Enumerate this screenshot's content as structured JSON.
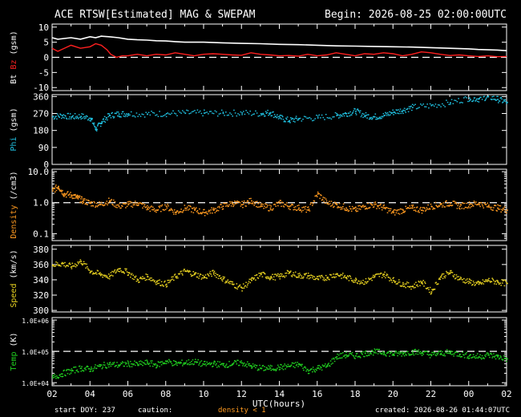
{
  "header": {
    "title": "ACE RTSW[Estimated] MAG & SWEPAM",
    "begin_label": "Begin: 2026-08-25 02:00:00UTC"
  },
  "footer": {
    "start_doy": "start DOY: 237",
    "caution": "caution:",
    "density_note": "density < 1",
    "created": "created: 2026-08-26 01:44:07UTC"
  },
  "x_axis": {
    "label": "UTC(hours)",
    "ticks": [
      "02",
      "04",
      "06",
      "08",
      "10",
      "12",
      "14",
      "16",
      "18",
      "20",
      "22",
      "00",
      "02"
    ],
    "range_hours": [
      0,
      24
    ]
  },
  "colors": {
    "bt": "#ffffff",
    "bz": "#ff2020",
    "phi": "#20c0e0",
    "density": "#ff9a20",
    "speed": "#e6d020",
    "temp": "#20d020",
    "caution": "#ff9a20"
  },
  "panels": {
    "mag": {
      "ylabel_parts": [
        "Bt",
        "Bz",
        "(gsm)"
      ],
      "ticks": [
        "10",
        "5",
        "0",
        "-5",
        "-10"
      ],
      "ylim": [
        -11,
        11
      ]
    },
    "phi": {
      "ylabel_parts": [
        "Phi",
        "(gsm)"
      ],
      "ticks": [
        "360",
        "270",
        "180",
        "90",
        "0"
      ],
      "ylim": [
        0,
        370
      ]
    },
    "density": {
      "ylabel_parts": [
        "Density",
        "(/cm3)"
      ],
      "ticks": [
        "10.0",
        "1.0",
        "0.1"
      ],
      "scale": "log",
      "ylim": [
        0.06,
        12
      ]
    },
    "speed": {
      "ylabel_parts": [
        "Speed",
        "(km/s)"
      ],
      "ticks": [
        "380",
        "360",
        "340",
        "320",
        "300"
      ],
      "ylim": [
        298,
        385
      ]
    },
    "temp": {
      "ylabel_parts": [
        "Temp",
        "(K)"
      ],
      "ticks": [
        "1.0E+06",
        "1.0E+05",
        "1.0E+04"
      ],
      "scale": "log",
      "ylim": [
        8000,
        1200000
      ]
    }
  },
  "chart_data": [
    {
      "type": "line",
      "panel": "mag",
      "x_unit": "hours since 2026-08-25 02:00 UTC",
      "series": [
        {
          "name": "Bt",
          "x": [
            0.0,
            0.3,
            1.0,
            1.5,
            2.0,
            2.3,
            2.6,
            3.0,
            3.5,
            4.0,
            4.5,
            5.0,
            5.5,
            6.0,
            6.5,
            7.0,
            7.5,
            8.0,
            9.0,
            10.0,
            11.0,
            12.0,
            13.0,
            14.0,
            15.0,
            16.0,
            17.0,
            18.0,
            19.0,
            20.0,
            21.0,
            22.0,
            22.5,
            23.0,
            23.5,
            24.0
          ],
          "y": [
            6.5,
            6.0,
            6.5,
            6.0,
            6.8,
            6.5,
            7.0,
            6.8,
            6.5,
            6.0,
            5.8,
            5.7,
            5.5,
            5.4,
            5.2,
            5.0,
            5.0,
            5.0,
            4.8,
            4.6,
            4.5,
            4.3,
            4.2,
            4.0,
            3.8,
            3.7,
            3.6,
            3.5,
            3.4,
            3.2,
            3.0,
            2.8,
            2.6,
            2.5,
            2.4,
            2.2
          ]
        },
        {
          "name": "Bz",
          "x": [
            0.0,
            0.3,
            1.0,
            1.5,
            2.0,
            2.3,
            2.6,
            2.9,
            3.1,
            3.4,
            3.7,
            4.0,
            4.5,
            5.0,
            5.5,
            6.0,
            6.5,
            7.0,
            7.5,
            8.0,
            8.5,
            9.0,
            9.5,
            10.0,
            10.5,
            11.0,
            11.5,
            12.0,
            12.5,
            13.0,
            13.5,
            14.0,
            14.5,
            15.0,
            15.5,
            16.0,
            16.5,
            17.0,
            17.5,
            18.0,
            18.5,
            19.0,
            19.5,
            20.0,
            20.5,
            21.0,
            21.5,
            22.0,
            22.5,
            23.0,
            23.5,
            24.0
          ],
          "y": [
            3.0,
            2.0,
            4.0,
            3.0,
            3.5,
            4.5,
            4.0,
            2.5,
            1.0,
            0.0,
            0.5,
            0.5,
            1.0,
            0.5,
            1.0,
            0.8,
            1.5,
            1.0,
            0.5,
            1.0,
            1.2,
            1.0,
            0.8,
            0.7,
            1.5,
            1.0,
            0.8,
            0.5,
            0.6,
            0.4,
            1.0,
            0.5,
            0.8,
            1.5,
            1.0,
            0.5,
            1.2,
            1.0,
            1.5,
            1.2,
            0.5,
            1.0,
            1.8,
            1.5,
            1.0,
            0.6,
            0.8,
            0.5,
            0.3,
            0.5,
            0.2,
            0.3
          ]
        }
      ],
      "reference_line": 0
    },
    {
      "type": "scatter",
      "panel": "phi",
      "series": [
        {
          "name": "Phi",
          "x": [
            0.0,
            0.5,
            1.0,
            1.5,
            2.0,
            2.3,
            2.6,
            3.0,
            3.5,
            4.0,
            5.0,
            6.0,
            7.0,
            8.0,
            9.0,
            10.0,
            11.0,
            11.5,
            12.0,
            12.5,
            13.0,
            14.0,
            15.0,
            15.5,
            16.0,
            16.5,
            17.0,
            17.5,
            18.0,
            18.5,
            19.0,
            20.0,
            21.0,
            22.0,
            22.5,
            23.0,
            23.5,
            24.0
          ],
          "y": [
            255,
            262,
            255,
            258,
            248,
            190,
            230,
            262,
            270,
            272,
            270,
            272,
            275,
            275,
            274,
            276,
            272,
            278,
            250,
            235,
            245,
            250,
            262,
            272,
            285,
            262,
            255,
            262,
            280,
            290,
            305,
            315,
            330,
            355,
            350,
            362,
            348,
            332
          ]
        }
      ]
    },
    {
      "type": "scatter",
      "panel": "density",
      "series": [
        {
          "name": "Density",
          "x": [
            0.0,
            0.3,
            0.6,
            1.0,
            1.3,
            1.6,
            2.0,
            2.5,
            3.0,
            3.5,
            4.0,
            4.5,
            5.0,
            5.5,
            6.0,
            6.5,
            7.0,
            7.5,
            8.0,
            8.5,
            9.0,
            9.5,
            10.0,
            10.5,
            11.0,
            11.5,
            12.0,
            12.5,
            13.0,
            13.5,
            14.0,
            14.5,
            15.0,
            15.5,
            16.0,
            16.5,
            17.0,
            17.5,
            18.0,
            18.5,
            19.0,
            19.5,
            20.0,
            20.5,
            21.0,
            21.5,
            22.0,
            22.5,
            23.0,
            23.5,
            24.0
          ],
          "y": [
            2.5,
            3.5,
            2.0,
            1.8,
            1.5,
            1.2,
            1.0,
            0.9,
            1.2,
            0.8,
            0.9,
            1.0,
            0.7,
            0.6,
            0.8,
            0.5,
            0.7,
            0.6,
            0.5,
            0.6,
            0.8,
            1.0,
            0.9,
            1.2,
            0.8,
            0.7,
            1.0,
            0.8,
            0.7,
            0.6,
            2.0,
            1.0,
            0.9,
            0.7,
            0.6,
            0.8,
            0.9,
            0.7,
            0.5,
            0.6,
            0.7,
            0.6,
            0.8,
            0.9,
            1.0,
            0.8,
            0.9,
            1.0,
            0.8,
            0.7,
            0.6
          ]
        }
      ],
      "reference_line": 1.0
    },
    {
      "type": "scatter",
      "panel": "speed",
      "series": [
        {
          "name": "Speed",
          "x": [
            0.0,
            0.5,
            1.0,
            1.5,
            2.0,
            2.5,
            3.0,
            3.5,
            4.0,
            4.5,
            5.0,
            5.5,
            6.0,
            6.5,
            7.0,
            7.5,
            8.0,
            8.5,
            9.0,
            9.5,
            10.0,
            10.5,
            11.0,
            11.5,
            12.0,
            12.5,
            13.0,
            13.5,
            14.0,
            14.5,
            15.0,
            15.5,
            16.0,
            16.5,
            17.0,
            17.5,
            18.0,
            18.5,
            19.0,
            19.5,
            20.0,
            20.5,
            21.0,
            21.5,
            22.0,
            22.5,
            23.0,
            23.5,
            24.0
          ],
          "y": [
            360,
            362,
            358,
            365,
            352,
            348,
            345,
            355,
            350,
            340,
            345,
            338,
            335,
            345,
            352,
            348,
            344,
            350,
            342,
            335,
            330,
            340,
            348,
            344,
            345,
            350,
            346,
            346,
            342,
            344,
            348,
            344,
            340,
            338,
            345,
            348,
            340,
            335,
            332,
            338,
            325,
            345,
            350,
            342,
            338,
            335,
            340,
            338,
            336
          ]
        }
      ]
    },
    {
      "type": "scatter",
      "panel": "temp",
      "series": [
        {
          "name": "Temp",
          "x": [
            0.0,
            0.5,
            1.0,
            1.5,
            2.0,
            2.5,
            3.0,
            3.5,
            4.0,
            4.5,
            5.0,
            5.5,
            6.0,
            6.5,
            7.0,
            7.5,
            8.0,
            8.5,
            9.0,
            9.5,
            10.0,
            10.5,
            11.0,
            11.5,
            12.0,
            12.5,
            13.0,
            13.5,
            14.0,
            14.5,
            15.0,
            15.5,
            16.0,
            16.5,
            17.0,
            17.5,
            18.0,
            18.5,
            19.0,
            19.5,
            20.0,
            20.5,
            21.0,
            21.5,
            22.0,
            22.5,
            23.0,
            23.5,
            24.0
          ],
          "y": [
            15000,
            20000,
            25000,
            30000,
            28000,
            35000,
            40000,
            38000,
            42000,
            40000,
            45000,
            38000,
            50000,
            42000,
            45000,
            48000,
            40000,
            42000,
            38000,
            42000,
            45000,
            35000,
            30000,
            30000,
            32000,
            35000,
            40000,
            25000,
            30000,
            35000,
            70000,
            80000,
            75000,
            90000,
            100000,
            95000,
            85000,
            90000,
            100000,
            95000,
            80000,
            90000,
            95000,
            85000,
            75000,
            70000,
            80000,
            70000,
            60000
          ]
        }
      ],
      "reference_line": 100000
    }
  ]
}
